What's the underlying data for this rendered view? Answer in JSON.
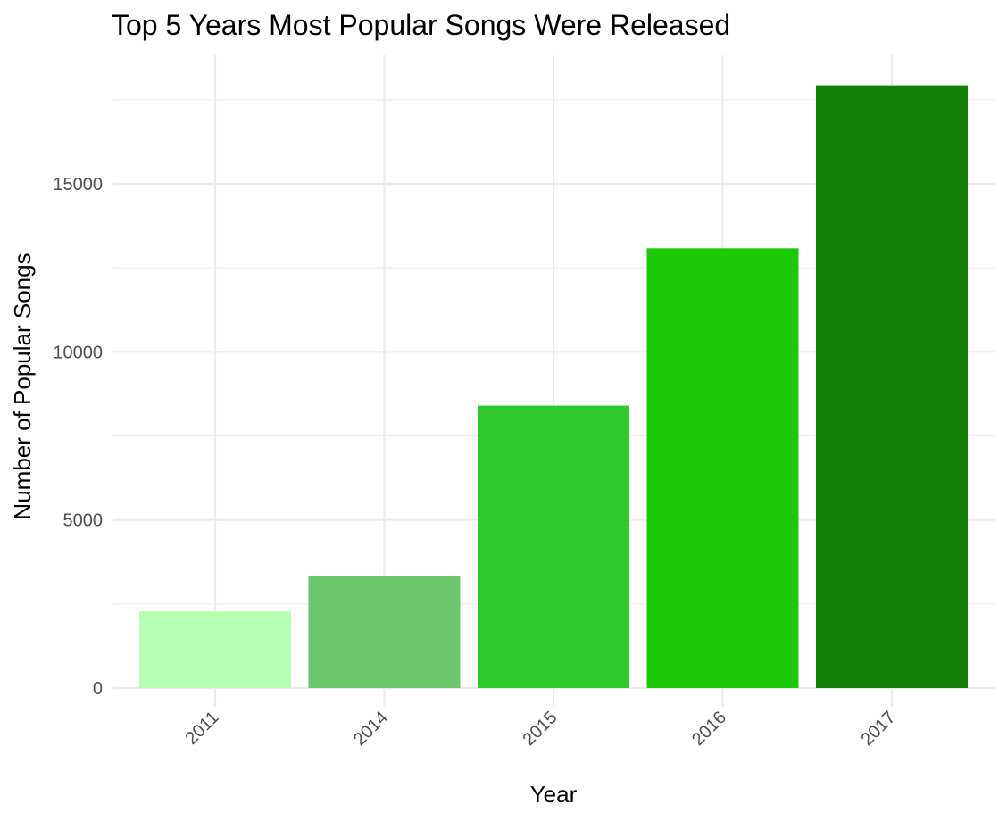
{
  "chart_data": {
    "type": "bar",
    "title": "Top 5 Years Most Popular Songs Were Released",
    "xlabel": "Year",
    "ylabel": "Number of Popular Songs",
    "categories": [
      "2011",
      "2014",
      "2015",
      "2016",
      "2017"
    ],
    "values": [
      2280,
      3330,
      8400,
      13080,
      17930
    ],
    "colors": [
      "#b7ffb4",
      "#6cc76c",
      "#2fc92b",
      "#1cc905",
      "#137e04"
    ],
    "ylim": [
      0,
      18500
    ],
    "yticks": [
      0,
      5000,
      10000,
      15000
    ],
    "yticks_labels": [
      "0",
      "5000",
      "10000",
      "15000"
    ],
    "x_tick_rotation_deg": 45,
    "grid": true,
    "legend": false
  }
}
